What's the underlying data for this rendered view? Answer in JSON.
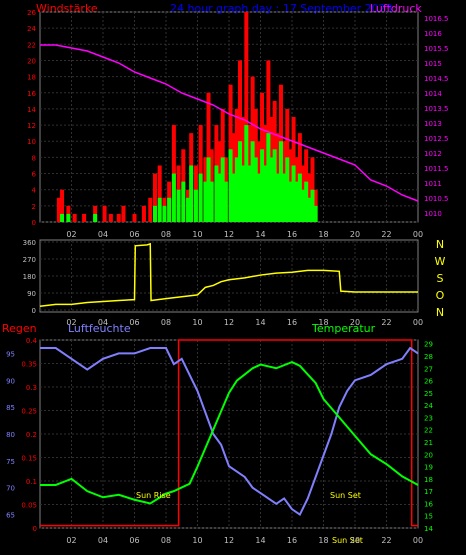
{
  "chart_data": [
    {
      "type": "bar+line",
      "title": "24 hour graph day : 17 September 2023",
      "ylabel_left": "Windstärke",
      "ylabel_right": "Luftdruck",
      "x_ticks": [
        "02",
        "04",
        "06",
        "08",
        "10",
        "12",
        "14",
        "16",
        "18",
        "20",
        "22",
        "00"
      ],
      "y_left_ticks": [
        "0",
        "2",
        "4",
        "6",
        "8",
        "10",
        "12",
        "14",
        "16",
        "18",
        "20",
        "22",
        "24",
        "26"
      ],
      "y_left_range": [
        0,
        26
      ],
      "y_right_ticks": [
        "1010",
        "1010.5",
        "1011",
        "1011.5",
        "1012",
        "1012.5",
        "1013",
        "1013.5",
        "1014",
        "1014.5",
        "1015",
        "1015.5",
        "1016",
        "1016.5"
      ],
      "y_right_range": [
        1009.7,
        1016.7
      ],
      "colors": {
        "gust": "#ff0000",
        "wind": "#00ff00",
        "pressure": "#ff00ff",
        "axis_left": "#ff0000",
        "axis_right": "#ff00ff"
      },
      "pressure": [
        [
          0,
          1015.6
        ],
        [
          1,
          1015.6
        ],
        [
          2,
          1015.5
        ],
        [
          3,
          1015.4
        ],
        [
          4,
          1015.2
        ],
        [
          5,
          1015.0
        ],
        [
          6,
          1014.7
        ],
        [
          7,
          1014.5
        ],
        [
          8,
          1014.3
        ],
        [
          9,
          1014.0
        ],
        [
          10,
          1013.8
        ],
        [
          11,
          1013.6
        ],
        [
          12,
          1013.3
        ],
        [
          13,
          1013.1
        ],
        [
          14,
          1012.8
        ],
        [
          15,
          1012.6
        ],
        [
          16,
          1012.4
        ],
        [
          17,
          1012.2
        ],
        [
          18,
          1012.0
        ],
        [
          19,
          1011.8
        ],
        [
          20,
          1011.6
        ],
        [
          21,
          1011.1
        ],
        [
          22,
          1010.9
        ],
        [
          23,
          1010.6
        ],
        [
          24,
          1010.4
        ]
      ],
      "gust_bars": [
        [
          1.2,
          3
        ],
        [
          1.4,
          4
        ],
        [
          1.8,
          2
        ],
        [
          2.2,
          1
        ],
        [
          2.8,
          1
        ],
        [
          3.5,
          2
        ],
        [
          4.1,
          2
        ],
        [
          4.5,
          1
        ],
        [
          5.0,
          1
        ],
        [
          5.3,
          2
        ],
        [
          6.0,
          1
        ],
        [
          6.6,
          2
        ],
        [
          7.0,
          3
        ],
        [
          7.3,
          6
        ],
        [
          7.6,
          7
        ],
        [
          7.9,
          3
        ],
        [
          8.2,
          5
        ],
        [
          8.5,
          12
        ],
        [
          8.8,
          7
        ],
        [
          9.1,
          9
        ],
        [
          9.4,
          4
        ],
        [
          9.6,
          11
        ],
        [
          9.9,
          7
        ],
        [
          10.2,
          12
        ],
        [
          10.5,
          8
        ],
        [
          10.7,
          16
        ],
        [
          10.9,
          9
        ],
        [
          11.2,
          12
        ],
        [
          11.4,
          10
        ],
        [
          11.6,
          14
        ],
        [
          11.8,
          8
        ],
        [
          12.1,
          17
        ],
        [
          12.3,
          11
        ],
        [
          12.5,
          14
        ],
        [
          12.7,
          20
        ],
        [
          12.9,
          13
        ],
        [
          13.1,
          28
        ],
        [
          13.3,
          12
        ],
        [
          13.5,
          18
        ],
        [
          13.7,
          14
        ],
        [
          13.9,
          10
        ],
        [
          14.1,
          16
        ],
        [
          14.3,
          12
        ],
        [
          14.5,
          20
        ],
        [
          14.7,
          13
        ],
        [
          14.9,
          15
        ],
        [
          15.1,
          11
        ],
        [
          15.3,
          17
        ],
        [
          15.5,
          10
        ],
        [
          15.7,
          14
        ],
        [
          15.9,
          9
        ],
        [
          16.1,
          13
        ],
        [
          16.3,
          8
        ],
        [
          16.5,
          11
        ],
        [
          16.7,
          7
        ],
        [
          16.9,
          9
        ],
        [
          17.1,
          6
        ],
        [
          17.3,
          8
        ],
        [
          17.5,
          4
        ]
      ],
      "wind_bars": [
        [
          1.4,
          1
        ],
        [
          1.8,
          1
        ],
        [
          3.5,
          1
        ],
        [
          7.3,
          2
        ],
        [
          7.6,
          3
        ],
        [
          7.9,
          2
        ],
        [
          8.2,
          3
        ],
        [
          8.5,
          6
        ],
        [
          8.8,
          4
        ],
        [
          9.1,
          5
        ],
        [
          9.4,
          3
        ],
        [
          9.6,
          7
        ],
        [
          9.9,
          4
        ],
        [
          10.2,
          6
        ],
        [
          10.5,
          5
        ],
        [
          10.7,
          8
        ],
        [
          10.9,
          5
        ],
        [
          11.2,
          7
        ],
        [
          11.4,
          6
        ],
        [
          11.6,
          8
        ],
        [
          11.8,
          5
        ],
        [
          12.1,
          9
        ],
        [
          12.3,
          6
        ],
        [
          12.5,
          8
        ],
        [
          12.7,
          10
        ],
        [
          12.9,
          7
        ],
        [
          13.1,
          12
        ],
        [
          13.3,
          7
        ],
        [
          13.5,
          10
        ],
        [
          13.7,
          8
        ],
        [
          13.9,
          6
        ],
        [
          14.1,
          9
        ],
        [
          14.3,
          7
        ],
        [
          14.5,
          11
        ],
        [
          14.7,
          8
        ],
        [
          14.9,
          9
        ],
        [
          15.1,
          6
        ],
        [
          15.3,
          10
        ],
        [
          15.5,
          6
        ],
        [
          15.7,
          8
        ],
        [
          15.9,
          5
        ],
        [
          16.1,
          7
        ],
        [
          16.3,
          5
        ],
        [
          16.5,
          6
        ],
        [
          16.7,
          4
        ],
        [
          16.9,
          5
        ],
        [
          17.1,
          3
        ],
        [
          17.3,
          4
        ],
        [
          17.5,
          2
        ]
      ]
    },
    {
      "type": "line",
      "title": "",
      "x_ticks": [
        "02",
        "04",
        "06",
        "08",
        "10",
        "12",
        "14",
        "16",
        "18",
        "20",
        "22",
        "00"
      ],
      "y_ticks": [
        "0",
        "90",
        "180",
        "270",
        "360"
      ],
      "y_range": [
        0,
        360
      ],
      "compass": [
        "N",
        "W",
        "S",
        "O",
        "N"
      ],
      "colors": {
        "line": "#ffff00"
      },
      "direction": [
        [
          0,
          20
        ],
        [
          1,
          30
        ],
        [
          2,
          30
        ],
        [
          3,
          40
        ],
        [
          4,
          45
        ],
        [
          5,
          50
        ],
        [
          6,
          55
        ],
        [
          6.05,
          340
        ],
        [
          6.8,
          345
        ],
        [
          7.0,
          350
        ],
        [
          7.05,
          50
        ],
        [
          7.5,
          55
        ],
        [
          8,
          60
        ],
        [
          9,
          70
        ],
        [
          10,
          80
        ],
        [
          10.5,
          120
        ],
        [
          11,
          130
        ],
        [
          11.5,
          150
        ],
        [
          12,
          160
        ],
        [
          13,
          170
        ],
        [
          14,
          185
        ],
        [
          15,
          195
        ],
        [
          16,
          200
        ],
        [
          17,
          210
        ],
        [
          18,
          210
        ],
        [
          19,
          205
        ],
        [
          19.1,
          100
        ],
        [
          20,
          95
        ],
        [
          22,
          95
        ],
        [
          24,
          95
        ]
      ]
    },
    {
      "type": "line",
      "title": "",
      "legend": [
        "Regen",
        "Luftfeuchte",
        "Temperatur"
      ],
      "x_ticks": [
        "02",
        "04",
        "06",
        "08",
        "10",
        "12",
        "14",
        "16",
        "18",
        "20",
        "22",
        "00"
      ],
      "y_left_ticks_rain": [
        "0",
        "0.05",
        "0.1",
        "0.15",
        "0.2",
        "0.25",
        "0.3",
        "0.35",
        "0.4"
      ],
      "y_left_ticks_humidity": [
        "65",
        "70",
        "75",
        "80",
        "85",
        "90",
        "95"
      ],
      "y_right_ticks": [
        "14",
        "15",
        "16",
        "17",
        "18",
        "19",
        "20",
        "21",
        "22",
        "23",
        "24",
        "25",
        "26",
        "27",
        "28",
        "29"
      ],
      "rain_range": [
        0,
        0.4
      ],
      "humidity_range": [
        62.5,
        97.5
      ],
      "temp_range": [
        14,
        29.3
      ],
      "colors": {
        "rain": "#ff0000",
        "humidity": "#8080ff",
        "temperature": "#00ff00"
      },
      "annotations": [
        "Sun Rise",
        "Sun Set",
        "Sun Set"
      ],
      "rain": [
        [
          0,
          0.005
        ],
        [
          8.8,
          0.005
        ],
        [
          8.8,
          0.4
        ],
        [
          23.6,
          0.4
        ],
        [
          23.6,
          0.005
        ],
        [
          24,
          0.005
        ]
      ],
      "humidity": [
        [
          0,
          96
        ],
        [
          1,
          96
        ],
        [
          2,
          94
        ],
        [
          3,
          92
        ],
        [
          4,
          94
        ],
        [
          5,
          95
        ],
        [
          6,
          95
        ],
        [
          7,
          96
        ],
        [
          8,
          96
        ],
        [
          8.5,
          93
        ],
        [
          9,
          94
        ],
        [
          9.5,
          91
        ],
        [
          10,
          88
        ],
        [
          10.5,
          84
        ],
        [
          11,
          80
        ],
        [
          11.5,
          78
        ],
        [
          12,
          74
        ],
        [
          12.5,
          73
        ],
        [
          13,
          72
        ],
        [
          13.5,
          70
        ],
        [
          14,
          69
        ],
        [
          14.5,
          68
        ],
        [
          15,
          67
        ],
        [
          15.5,
          68
        ],
        [
          16,
          66
        ],
        [
          16.5,
          65
        ],
        [
          17,
          68
        ],
        [
          17.5,
          72
        ],
        [
          18,
          76
        ],
        [
          18.5,
          80
        ],
        [
          19,
          85
        ],
        [
          19.5,
          88
        ],
        [
          20,
          90
        ],
        [
          21,
          91
        ],
        [
          22,
          93
        ],
        [
          23,
          94
        ],
        [
          23.5,
          96
        ],
        [
          24,
          95
        ]
      ],
      "temperature": [
        [
          0,
          17.5
        ],
        [
          1,
          17.5
        ],
        [
          2,
          18
        ],
        [
          3,
          17
        ],
        [
          4,
          16.5
        ],
        [
          5,
          16.7
        ],
        [
          6,
          16.3
        ],
        [
          7,
          16.0
        ],
        [
          8,
          16.8
        ],
        [
          8.5,
          17
        ],
        [
          9,
          17.3
        ],
        [
          9.5,
          17.6
        ],
        [
          10,
          19
        ],
        [
          10.5,
          20.5
        ],
        [
          11,
          22
        ],
        [
          11.5,
          23.5
        ],
        [
          12,
          25
        ],
        [
          12.5,
          26
        ],
        [
          13,
          26.5
        ],
        [
          13.5,
          27
        ],
        [
          14,
          27.3
        ],
        [
          15,
          27
        ],
        [
          16,
          27.5
        ],
        [
          16.5,
          27.2
        ],
        [
          17,
          26.5
        ],
        [
          17.5,
          25.8
        ],
        [
          18,
          24.5
        ],
        [
          19,
          23
        ],
        [
          20,
          21.5
        ],
        [
          21,
          20
        ],
        [
          22,
          19.2
        ],
        [
          23,
          18.2
        ],
        [
          24,
          17.5
        ]
      ]
    }
  ]
}
